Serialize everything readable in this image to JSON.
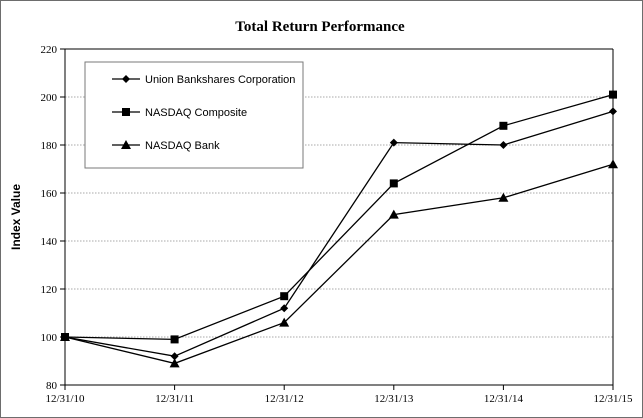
{
  "chart_data": {
    "type": "line",
    "title": "Total Return Performance",
    "xlabel": "",
    "ylabel": "Index Value",
    "categories": [
      "12/31/10",
      "12/31/11",
      "12/31/12",
      "12/31/13",
      "12/31/14",
      "12/31/15"
    ],
    "y_ticks": [
      "80",
      "100",
      "120",
      "140",
      "160",
      "180",
      "200",
      "220"
    ],
    "ylim": [
      80,
      220
    ],
    "grid": "horizontal dotted",
    "legend_position": "top-left inside plot",
    "series": [
      {
        "name": "Union Bankshares Corporation",
        "marker": "diamond",
        "values": [
          100,
          92,
          112,
          181,
          180,
          194
        ]
      },
      {
        "name": "NASDAQ Composite",
        "marker": "square",
        "values": [
          100,
          99,
          117,
          164,
          188,
          201
        ]
      },
      {
        "name": "NASDAQ Bank",
        "marker": "triangle",
        "values": [
          100,
          89,
          106,
          151,
          158,
          172
        ]
      }
    ],
    "colors": {
      "line": "#000000",
      "grid": "#8c8c8c",
      "axis": "#000000"
    }
  }
}
